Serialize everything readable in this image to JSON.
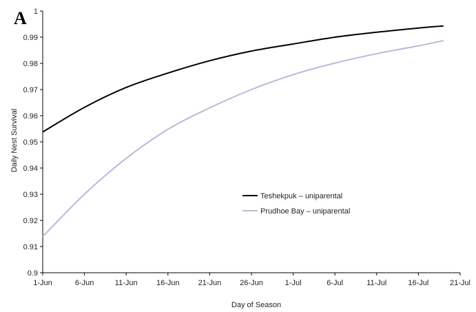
{
  "panel_label": "A",
  "chart_data": {
    "type": "line",
    "title": "",
    "xlabel": "Day of Season",
    "ylabel": "Daily Nest Survival",
    "x_ticks": [
      "1-Jun",
      "6-Jun",
      "11-Jun",
      "16-Jun",
      "21-Jun",
      "26-Jun",
      "1-Jul",
      "6-Jul",
      "11-Jul",
      "16-Jul",
      "21-Jul"
    ],
    "y_ticks": [
      "0.9",
      "0.91",
      "0.92",
      "0.93",
      "0.94",
      "0.95",
      "0.96",
      "0.97",
      "0.98",
      "0.99",
      "1"
    ],
    "xlim": [
      "2000-06-01",
      "2000-07-21"
    ],
    "ylim": [
      0.9,
      1.0
    ],
    "grid": false,
    "legend_position": "center-right",
    "series": [
      {
        "name": "Teshekpuk – uniparental",
        "color": "#000000",
        "x": [
          "2000-06-01",
          "2000-06-06",
          "2000-06-11",
          "2000-06-16",
          "2000-06-21",
          "2000-06-26",
          "2000-07-01",
          "2000-07-06",
          "2000-07-11",
          "2000-07-16",
          "2000-07-19"
        ],
        "values": [
          0.9538,
          0.9632,
          0.9708,
          0.9763,
          0.981,
          0.9847,
          0.9874,
          0.99,
          0.9919,
          0.9935,
          0.9943
        ]
      },
      {
        "name": "Prudhoe Bay – uniparental",
        "color": "#b9b9dc",
        "x": [
          "2000-06-01",
          "2000-06-06",
          "2000-06-11",
          "2000-06-16",
          "2000-06-21",
          "2000-06-26",
          "2000-07-01",
          "2000-07-06",
          "2000-07-11",
          "2000-07-16",
          "2000-07-19"
        ],
        "values": [
          0.9138,
          0.93,
          0.9437,
          0.9548,
          0.963,
          0.97,
          0.9757,
          0.9801,
          0.9837,
          0.9867,
          0.9887
        ]
      }
    ]
  }
}
